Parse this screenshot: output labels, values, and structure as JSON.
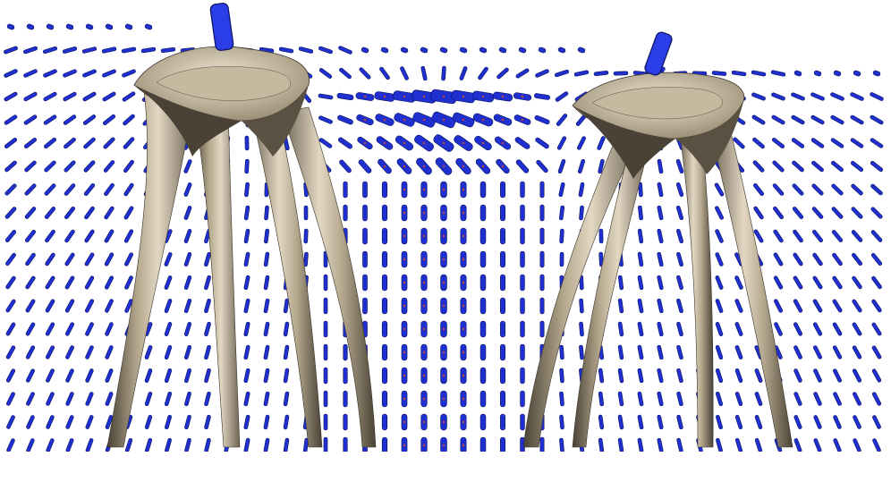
{
  "figure": {
    "description_visible_text": "",
    "colors": {
      "background": "#ffffff",
      "glyph_fill": "#1f2fd0",
      "glyph_edge": "#0b1460",
      "glyph_dot": "#d0402a",
      "surface_light": "#d9cdb6",
      "surface_mid": "#b3a68c",
      "surface_dark": "#4a4236",
      "pointer_fill": "#2b3de6"
    },
    "icons": [
      "tensor-glyph-field",
      "tensor-surface-left",
      "tensor-surface-right",
      "pointer-left",
      "pointer-right"
    ]
  }
}
